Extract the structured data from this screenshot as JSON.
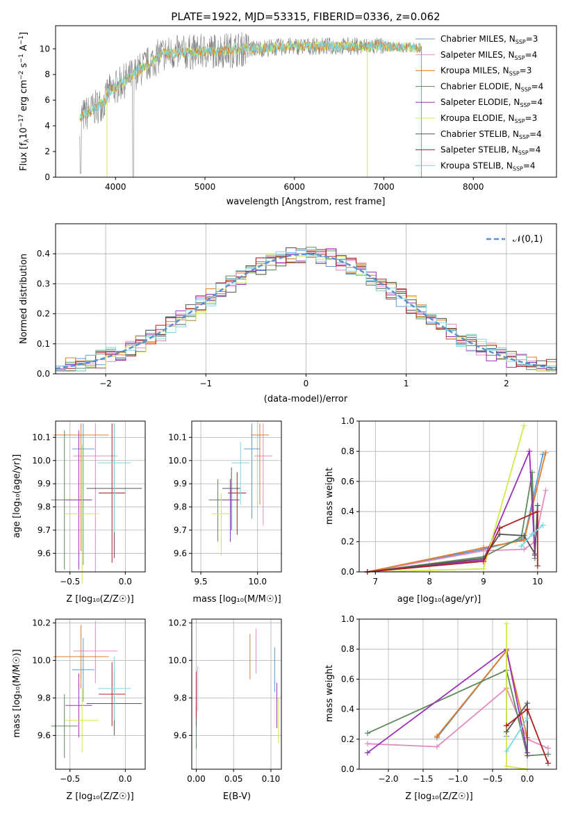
{
  "figure": {
    "title": "PLATE=1922, MJD=53315, FIBERID=0336, z=0.062"
  },
  "models": [
    {
      "name": "Chabrier MILES",
      "nssp": "3",
      "color": "#5b9bd5",
      "age_err": [
        -0.38,
        10.05,
        0.1,
        0.5
      ],
      "mass_err": [
        9.95,
        10.05,
        0.07,
        0.5
      ],
      "ebv": 0.105
    },
    {
      "name": "Salpeter MILES",
      "nssp": "4",
      "color": "#e48ac0",
      "age_err": [
        -0.27,
        10.02,
        0.2,
        0.5
      ],
      "mass_err": [
        10.05,
        10.02,
        0.08,
        0.5
      ],
      "ebv": 0.08
    },
    {
      "name": "Kroupa MILES",
      "nssp": "3",
      "color": "#e07b2a",
      "age_err": [
        -0.4,
        10.11,
        0.25,
        0.5
      ],
      "mass_err": [
        10.02,
        10.11,
        0.08,
        0.5
      ],
      "ebv": 0.072
    },
    {
      "name": "Chabrier ELODIE",
      "nssp": "4",
      "color": "#5c8a5c",
      "age_err": [
        -0.55,
        9.83,
        0.12,
        0.3
      ],
      "mass_err": [
        9.65,
        9.83,
        0.08,
        0.3
      ],
      "ebv": 0.0
    },
    {
      "name": "Salpeter ELODIE",
      "nssp": "4",
      "color": "#9b30b8",
      "age_err": [
        -0.42,
        9.83,
        0.12,
        0.3
      ],
      "mass_err": [
        9.76,
        9.83,
        0.08,
        0.3
      ],
      "ebv": 0.108
    },
    {
      "name": "Kroupa ELODIE",
      "nssp": "3",
      "color": "#d4e84a",
      "age_err": [
        -0.39,
        9.77,
        0.15,
        0.3
      ],
      "mass_err": [
        9.68,
        9.77,
        0.08,
        0.3
      ],
      "ebv": 0.11
    },
    {
      "name": "Chabrier STELIB",
      "nssp": "4",
      "color": "#555555",
      "age_err": [
        -0.1,
        9.88,
        0.25,
        0.3
      ],
      "mass_err": [
        9.77,
        9.88,
        0.08,
        0.3
      ],
      "ebv": 0.0
    },
    {
      "name": "Salpeter STELIB",
      "nssp": "4",
      "color": "#b01c1c",
      "age_err": [
        -0.12,
        9.86,
        0.12,
        0.3
      ],
      "mass_err": [
        9.82,
        9.86,
        0.08,
        0.3
      ],
      "ebv": 0.0
    },
    {
      "name": "Kroupa STELIB",
      "nssp": "4",
      "color": "#7ad8e0",
      "age_err": [
        -0.1,
        9.99,
        0.15,
        0.3
      ],
      "mass_err": [
        9.85,
        9.99,
        0.08,
        0.3
      ],
      "ebv": 0.002
    }
  ],
  "spectrum": {
    "xlabel": "wavelength [Angstrom, rest frame]",
    "ylabel": "Flux [f_λ10^-17 erg cm^-2 s^-1 A^-1]",
    "xlim": [
      3330,
      8930
    ],
    "ylim": [
      0,
      11.8
    ],
    "xticks": [
      "4000",
      "5000",
      "6000",
      "7000",
      "8000"
    ],
    "xtick_values": [
      4000,
      5000,
      6000,
      7000,
      8000
    ],
    "yticks": [
      "0",
      "2",
      "4",
      "6",
      "8",
      "10"
    ],
    "ytick_values": [
      0,
      2,
      4,
      6,
      8,
      10
    ],
    "data_color": "#7f7f7f",
    "model_color": "#7ad8e0",
    "start_wavelength": 3600,
    "end_wavelength": 7420
  },
  "residuals": {
    "xlabel": "(data-model)/error",
    "ylabel": "Normed distribution",
    "legend": "𝒩(0,1)",
    "gauss_color": "#5b8fd0",
    "xlim": [
      -2.5,
      2.5
    ],
    "ylim": [
      0,
      0.5
    ],
    "xticks": [
      "−2",
      "−1",
      "0",
      "1",
      "2"
    ],
    "xtick_values": [
      -2,
      -1,
      0,
      1,
      2
    ],
    "yticks": [
      "0.0",
      "0.1",
      "0.2",
      "0.3",
      "0.4"
    ],
    "ytick_values": [
      0,
      0.1,
      0.2,
      0.3,
      0.4
    ]
  },
  "panel_age_z": {
    "xlabel": "Z [log₁₀(Z/Z☉)]",
    "ylabel": "age  [log₁₀(age/yr)]",
    "xticks": [
      "−0.5",
      "0.0"
    ],
    "xtick_values": [
      -0.5,
      0.0
    ],
    "xlim": [
      -0.63,
      0.18
    ],
    "yticks": [
      "9.6",
      "9.7",
      "9.8",
      "9.9",
      "10.0",
      "10.1"
    ],
    "ytick_values": [
      9.6,
      9.7,
      9.8,
      9.9,
      10.0,
      10.1
    ],
    "ylim": [
      9.52,
      10.17
    ]
  },
  "panel_age_mass": {
    "xlabel": "mass [log₁₀(M/M☉)]",
    "xticks": [
      "9.5",
      "10.0"
    ],
    "xtick_values": [
      9.5,
      10.0
    ],
    "xlim": [
      9.42,
      10.21
    ],
    "yticks": [
      "9.6",
      "9.7",
      "9.8",
      "9.9",
      "10.0",
      "10.1"
    ],
    "ytick_values": [
      9.6,
      9.7,
      9.8,
      9.9,
      10.0,
      10.1
    ],
    "ylim": [
      9.52,
      10.17
    ]
  },
  "panel_mw_age": {
    "xlabel": "age  [log₁₀(age/yr)]",
    "ylabel": "mass weight",
    "xticks": [
      "7",
      "8",
      "9",
      "10"
    ],
    "xtick_values": [
      7,
      8,
      9,
      10
    ],
    "xlim": [
      6.7,
      10.35
    ],
    "yticks": [
      "0.0",
      "0.2",
      "0.4",
      "0.6",
      "0.8",
      "1.0"
    ],
    "ytick_values": [
      0,
      0.2,
      0.4,
      0.6,
      0.8,
      1.0
    ],
    "ylim": [
      0,
      1.0
    ]
  },
  "panel_mass_z": {
    "xlabel": "Z [log₁₀(Z/Z☉)]",
    "ylabel": "mass [log₁₀(M/M☉)]",
    "xticks": [
      "−0.5",
      "0.0"
    ],
    "xtick_values": [
      -0.5,
      0.0
    ],
    "xlim": [
      -0.63,
      0.18
    ],
    "yticks": [
      "9.6",
      "9.8",
      "10.0",
      "10.2"
    ],
    "ytick_values": [
      9.6,
      9.8,
      10.0,
      10.2
    ],
    "ylim": [
      9.42,
      10.22
    ]
  },
  "panel_mass_ebv": {
    "xlabel": "E(B-V)",
    "xticks": [
      "0.00",
      "0.05",
      "0.10"
    ],
    "xtick_values": [
      0,
      0.05,
      0.1
    ],
    "xlim": [
      -0.006,
      0.114
    ],
    "yticks": [
      "9.6",
      "9.8",
      "10.0",
      "10.2"
    ],
    "ytick_values": [
      9.6,
      9.8,
      10.0,
      10.2
    ],
    "ylim": [
      9.42,
      10.22
    ]
  },
  "panel_mw_z": {
    "xlabel": "Z [log₁₀(Z/Z☉)]",
    "ylabel": "mass weight",
    "xticks": [
      "−2.0",
      "−1.5",
      "−1.0",
      "−0.5",
      "0.0"
    ],
    "xtick_values": [
      -2.0,
      -1.5,
      -1.0,
      -0.5,
      0.0
    ],
    "xlim": [
      -2.42,
      0.42
    ],
    "yticks": [
      "0.0",
      "0.2",
      "0.4",
      "0.6",
      "0.8",
      "1.0"
    ],
    "ytick_values": [
      0,
      0.2,
      0.4,
      0.6,
      0.8,
      1.0
    ],
    "ylim": [
      0,
      1.0
    ]
  },
  "chart_data": [
    {
      "type": "line",
      "title": "PLATE=1922, MJD=53315, FIBERID=0336, z=0.062",
      "xlabel": "wavelength [Angstrom, rest frame]",
      "ylabel": "Flux [f_λ10^-17 erg cm^-2 s^-1 A^-1]",
      "xlim": [
        3330,
        8930
      ],
      "ylim": [
        0,
        11.8
      ],
      "series": [
        {
          "name": "Chabrier MILES, N_SSP=3"
        },
        {
          "name": "Salpeter MILES, N_SSP=4"
        },
        {
          "name": "Kroupa MILES, N_SSP=3"
        },
        {
          "name": "Chabrier ELODIE, N_SSP=4"
        },
        {
          "name": "Salpeter ELODIE, N_SSP=4"
        },
        {
          "name": "Kroupa ELODIE, N_SSP=3"
        },
        {
          "name": "Chabrier STELIB, N_SSP=4"
        },
        {
          "name": "Salpeter STELIB, N_SSP=4"
        },
        {
          "name": "Kroupa STELIB, N_SSP=4"
        }
      ],
      "x": [
        3600,
        3800,
        4000,
        4200,
        4500,
        5000,
        5500,
        6000,
        6500,
        7000,
        7400
      ],
      "y_approx": [
        4.5,
        6.5,
        7.0,
        8.5,
        9.8,
        10.2,
        10.4,
        10.3,
        10.3,
        10.2,
        10.0
      ],
      "legend": "top-right"
    },
    {
      "type": "bar",
      "xlabel": "(data-model)/error",
      "ylabel": "Normed distribution",
      "xlim": [
        -2.5,
        2.5
      ],
      "ylim": [
        0,
        0.5
      ],
      "gaussian": {
        "name": "𝒩(0,1)",
        "mean": 0,
        "sigma": 1
      },
      "legend": "top-right"
    },
    {
      "type": "scatter",
      "xlabel": "age  [log₁₀(age/yr)]",
      "ylabel": "mass weight",
      "series": [
        {
          "name": "Chabrier MILES",
          "x": [
            6.85,
            9.0,
            9.75,
            10.1
          ],
          "y": [
            0.0,
            0.15,
            0.22,
            0.78
          ]
        },
        {
          "name": "Salpeter MILES",
          "x": [
            6.85,
            9.0,
            9.75,
            9.95,
            10.15
          ],
          "y": [
            0.0,
            0.14,
            0.15,
            0.2,
            0.54
          ]
        },
        {
          "name": "Kroupa MILES",
          "x": [
            6.85,
            9.0,
            9.75,
            10.15
          ],
          "y": [
            0.0,
            0.16,
            0.21,
            0.79
          ]
        },
        {
          "name": "Chabrier ELODIE",
          "x": [
            6.85,
            9.0,
            9.7,
            9.9,
            9.95
          ],
          "y": [
            0.0,
            0.1,
            0.23,
            0.66,
            0.09
          ]
        },
        {
          "name": "Salpeter ELODIE",
          "x": [
            6.85,
            9.0,
            9.85,
            9.95
          ],
          "y": [
            0.0,
            0.08,
            0.8,
            0.11
          ]
        },
        {
          "name": "Kroupa ELODIE",
          "x": [
            6.85,
            9.0,
            9.75
          ],
          "y": [
            0.0,
            0.02,
            0.97
          ]
        },
        {
          "name": "Chabrier STELIB",
          "x": [
            6.85,
            9.0,
            9.3,
            9.75,
            9.95,
            10.0
          ],
          "y": [
            0.0,
            0.09,
            0.25,
            0.24,
            0.12,
            0.44
          ]
        },
        {
          "name": "Salpeter STELIB",
          "x": [
            6.85,
            9.0,
            9.3,
            10.0,
            10.0
          ],
          "y": [
            0.0,
            0.07,
            0.29,
            0.4,
            0.04
          ]
        },
        {
          "name": "Kroupa STELIB",
          "x": [
            9.7,
            9.9,
            10.1
          ],
          "y": [
            0.17,
            0.25,
            0.31
          ]
        }
      ]
    },
    {
      "type": "scatter",
      "xlabel": "Z [log₁₀(Z/Z☉)]",
      "ylabel": "mass weight"
    }
  ]
}
